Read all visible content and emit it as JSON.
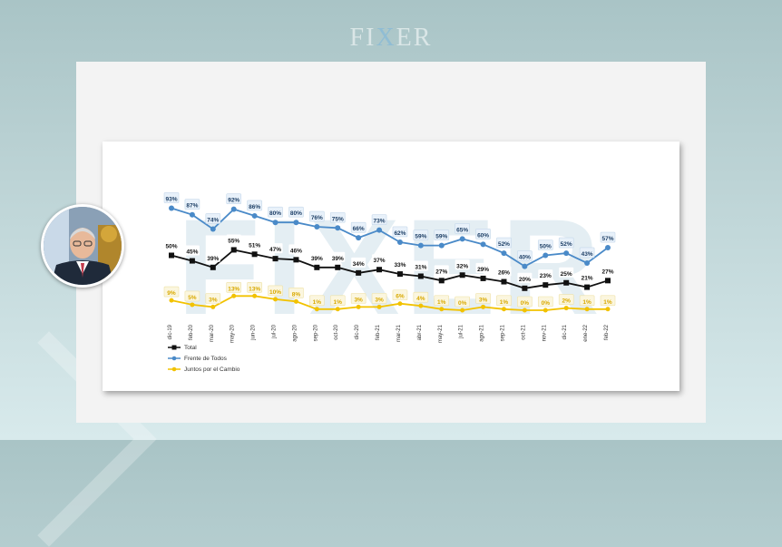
{
  "brand": {
    "pre": "FI",
    "mid": "X",
    "post": "ER"
  },
  "watermark": "FIXER",
  "colors": {
    "total": "#111111",
    "frente": "#4a8ac8",
    "juntos": "#f2c200",
    "label_fill": "#e8f1fa"
  },
  "chart_data": {
    "type": "line",
    "categories": [
      "dic-19",
      "feb-20",
      "mar-20",
      "may-20",
      "jun-20",
      "jul-20",
      "ago-20",
      "sep-20",
      "oct-20",
      "dic-20",
      "feb-21",
      "mar-21",
      "abr-21",
      "may-21",
      "jul-21",
      "ago-21",
      "sep-21",
      "oct-21",
      "nov-21",
      "dic-21",
      "ene-22",
      "feb-22"
    ],
    "series": [
      {
        "name": "Total",
        "key": "total",
        "values": [
          50,
          45,
          39,
          55,
          51,
          47,
          46,
          39,
          39,
          34,
          37,
          33,
          31,
          27,
          32,
          29,
          26,
          20,
          23,
          25,
          21,
          27
        ]
      },
      {
        "name": "Frente de Todos",
        "key": "frente",
        "values": [
          93,
          87,
          74,
          92,
          86,
          80,
          80,
          76,
          75,
          66,
          73,
          62,
          59,
          59,
          65,
          60,
          52,
          40,
          50,
          52,
          43,
          57
        ]
      },
      {
        "name": "Juntos por el Cambio",
        "key": "juntos",
        "values": [
          9,
          5,
          3,
          13,
          13,
          10,
          8,
          1,
          1,
          3,
          3,
          6,
          4,
          1,
          0,
          3,
          1,
          0,
          0,
          2,
          1,
          1
        ]
      }
    ],
    "legend_position": "bottom-left"
  }
}
